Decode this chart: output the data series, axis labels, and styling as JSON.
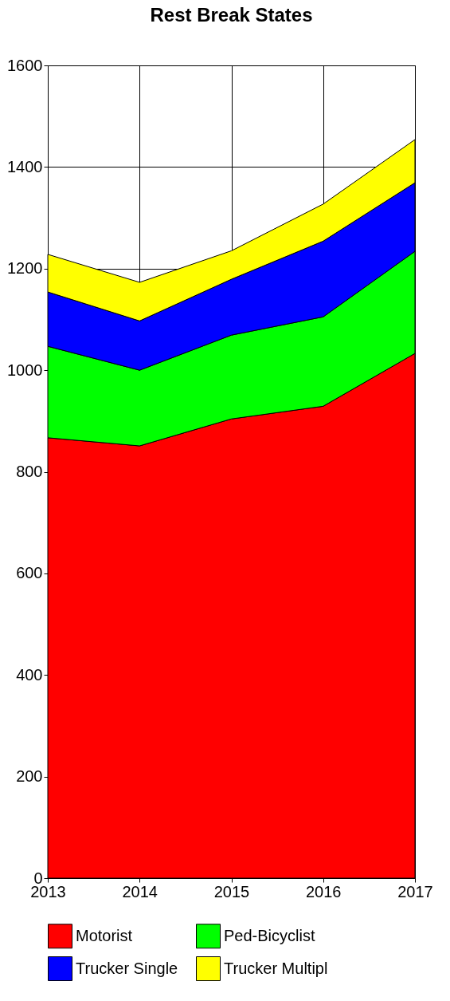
{
  "chart_data": {
    "type": "area",
    "title": "Rest Break States",
    "stacked": true,
    "x": [
      2013,
      2014,
      2015,
      2016,
      2017
    ],
    "xlim": [
      2013,
      2017
    ],
    "xticks": [
      2013,
      2014,
      2015,
      2016,
      2017
    ],
    "ylim": [
      0,
      1600
    ],
    "yticks": [
      0,
      200,
      400,
      600,
      800,
      1000,
      1200,
      1400,
      1600
    ],
    "grid": true,
    "legend": "bottom",
    "series": [
      {
        "name": "Motorist",
        "color": "#ff0000",
        "values": [
          867,
          851,
          904,
          929,
          1033
        ]
      },
      {
        "name": "Ped-Bicyclist",
        "color": "#00ff00",
        "values": [
          180,
          149,
          165,
          176,
          201
        ]
      },
      {
        "name": "Trucker Single",
        "color": "#0000ff",
        "values": [
          107,
          97,
          110,
          149,
          135
        ]
      },
      {
        "name": "Trucker Multipl",
        "color": "#ffff00",
        "values": [
          74,
          76,
          56,
          73,
          85
        ]
      }
    ]
  }
}
